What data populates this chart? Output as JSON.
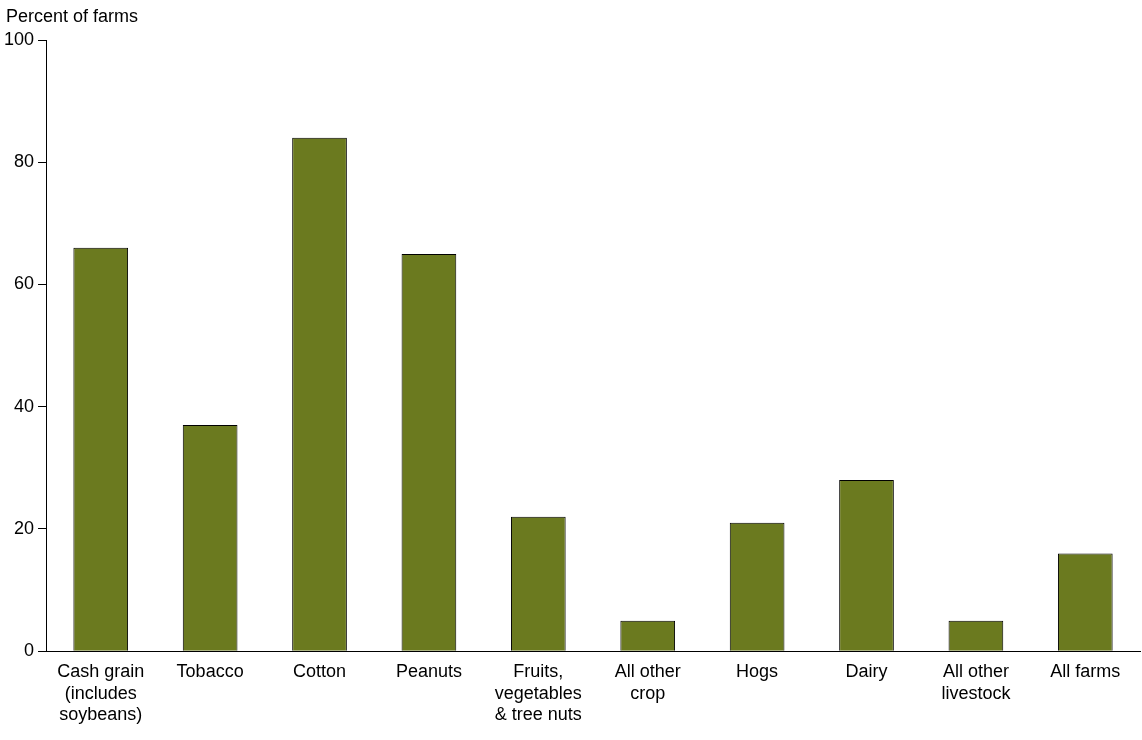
{
  "chart_data": {
    "type": "bar",
    "ylabel": "Percent of farms",
    "categories": [
      "Cash grain (includes soybeans)",
      "Tobacco",
      "Cotton",
      "Peanuts",
      "Fruits, vegetables & tree nuts",
      "All other crop",
      "Hogs",
      "Dairy",
      "All other livestock",
      "All farms"
    ],
    "values": [
      66,
      37,
      84,
      65,
      22,
      5,
      21,
      28,
      5,
      16
    ],
    "color": "#6b7a1f",
    "ylim": [
      0,
      100
    ],
    "yticks": [
      0,
      20,
      40,
      60,
      80,
      100
    ],
    "grid": false,
    "legend": false
  }
}
